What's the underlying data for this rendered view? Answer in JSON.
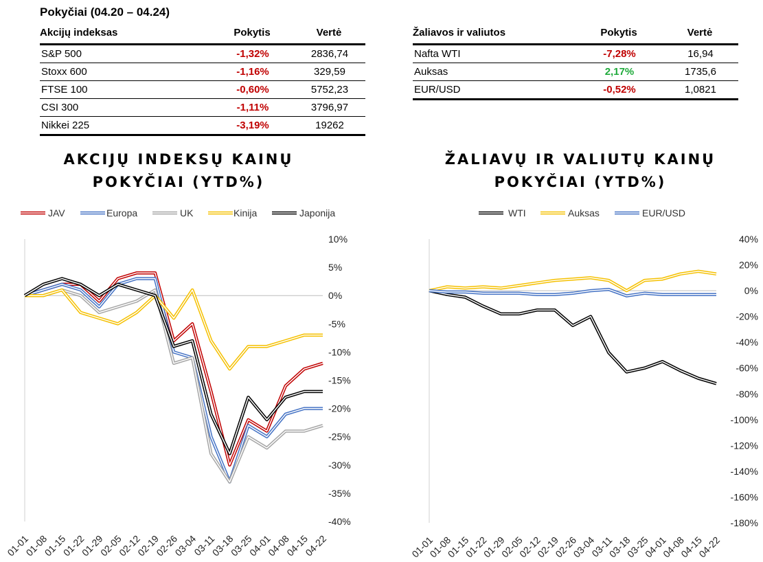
{
  "title": "Pokyčiai (04.20 – 04.24)",
  "table_left": {
    "headers": [
      "Akcijų indeksas",
      "Pokytis",
      "Vertė"
    ],
    "rows": [
      {
        "name": "S&P 500",
        "change": "-1,32%",
        "value": "2836,74",
        "dir": "neg"
      },
      {
        "name": "Stoxx 600",
        "change": "-1,16%",
        "value": "329,59",
        "dir": "neg"
      },
      {
        "name": "FTSE 100",
        "change": "-0,60%",
        "value": "5752,23",
        "dir": "neg"
      },
      {
        "name": "CSI 300",
        "change": "-1,11%",
        "value": "3796,97",
        "dir": "neg"
      },
      {
        "name": "Nikkei 225",
        "change": "-3,19%",
        "value": "19262",
        "dir": "neg"
      }
    ]
  },
  "table_right": {
    "headers": [
      "Žaliavos ir valiutos",
      "Pokytis",
      "Vertė"
    ],
    "rows": [
      {
        "name": "Nafta WTI",
        "change": "-7,28%",
        "value": "16,94",
        "dir": "neg"
      },
      {
        "name": "Auksas",
        "change": "2,17%",
        "value": "1735,6",
        "dir": "pos"
      },
      {
        "name": "EUR/USD",
        "change": "-0,52%",
        "value": "1,0821",
        "dir": "neg"
      }
    ]
  },
  "colors": {
    "neg": "#c00000",
    "pos": "#1faa3b",
    "JAV": "#c00000",
    "Europa": "#4472c4",
    "UK": "#a5a5a5",
    "Kinija": "#f5c000",
    "Japonija": "#000000",
    "WTI": "#000000",
    "Auksas": "#f5c000",
    "EUR/USD": "#4472c4"
  },
  "chart_data": [
    {
      "type": "line",
      "title": "AKCIJŲ INDEKSŲ KAINŲ POKYČIAI (YTD%)",
      "title_lines": [
        "AKCIJŲ INDEKSŲ KAINŲ",
        "POKYČIAI (YTD%)"
      ],
      "x": [
        "01-01",
        "01-08",
        "01-15",
        "01-22",
        "01-29",
        "02-05",
        "02-12",
        "02-19",
        "02-26",
        "03-04",
        "03-11",
        "03-18",
        "03-25",
        "04-01",
        "04-08",
        "04-15",
        "04-22"
      ],
      "y_unit": "%",
      "ylim": [
        -40,
        10
      ],
      "yticks": [
        10,
        5,
        0,
        -5,
        -10,
        -15,
        -20,
        -25,
        -30,
        -35,
        -40
      ],
      "ytick_labels": [
        "10%",
        "5%",
        "0%",
        "-5%",
        "-10%",
        "-15%",
        "-20%",
        "-25%",
        "-30%",
        "-35%",
        "-40%"
      ],
      "legend_position": "top",
      "series": [
        {
          "name": "JAV",
          "values": [
            0,
            1,
            2,
            2,
            -1,
            3,
            4,
            4,
            -8,
            -5,
            -17,
            -30,
            -22,
            -24,
            -16,
            -13,
            -12
          ]
        },
        {
          "name": "Europa",
          "values": [
            0,
            1,
            2,
            1,
            -2,
            2,
            3,
            3,
            -10,
            -11,
            -25,
            -33,
            -23,
            -25,
            -21,
            -20,
            -20
          ]
        },
        {
          "name": "UK",
          "values": [
            0,
            0,
            1,
            0,
            -3,
            -2,
            -1,
            1,
            -12,
            -11,
            -28,
            -33,
            -25,
            -27,
            -24,
            -24,
            -23
          ]
        },
        {
          "name": "Kinija",
          "values": [
            0,
            0,
            1,
            -3,
            -4,
            -5,
            -3,
            0,
            -4,
            1,
            -8,
            -13,
            -9,
            -9,
            -8,
            -7,
            -7
          ]
        },
        {
          "name": "Japonija",
          "values": [
            0,
            2,
            3,
            2,
            0,
            2,
            1,
            0,
            -9,
            -8,
            -21,
            -28,
            -18,
            -22,
            -18,
            -17,
            -17
          ]
        }
      ]
    },
    {
      "type": "line",
      "title": "ŽALIAVŲ IR VALIUTŲ KAINŲ POKYČIAI (YTD%)",
      "title_lines": [
        "ŽALIAVŲ IR VALIUTŲ KAINŲ",
        "POKYČIAI (YTD%)"
      ],
      "x": [
        "01-01",
        "01-08",
        "01-15",
        "01-22",
        "01-29",
        "02-05",
        "02-12",
        "02-19",
        "02-26",
        "03-04",
        "03-11",
        "03-18",
        "03-25",
        "04-01",
        "04-08",
        "04-15",
        "04-22"
      ],
      "y_unit": "%",
      "ylim": [
        -180,
        40
      ],
      "yticks": [
        40,
        20,
        0,
        -20,
        -40,
        -60,
        -80,
        -100,
        -120,
        -140,
        -160,
        -180
      ],
      "ytick_labels": [
        "40%",
        "20%",
        "0%",
        "-20%",
        "-40%",
        "-60%",
        "-80%",
        "-100%",
        "-120%",
        "-140%",
        "-160%",
        "-180%"
      ],
      "legend_position": "top",
      "series": [
        {
          "name": "WTI",
          "values": [
            0,
            -3,
            -5,
            -12,
            -18,
            -18,
            -15,
            -15,
            -27,
            -20,
            -48,
            -63,
            -60,
            -55,
            -62,
            -68,
            -72
          ]
        },
        {
          "name": "Auksas",
          "values": [
            0,
            3,
            2,
            3,
            2,
            4,
            6,
            8,
            9,
            10,
            8,
            0,
            8,
            9,
            13,
            15,
            13
          ]
        },
        {
          "name": "EUR/USD",
          "values": [
            0,
            -1,
            -1,
            -2,
            -2,
            -2,
            -3,
            -3,
            -2,
            0,
            1,
            -4,
            -2,
            -3,
            -3,
            -3,
            -3
          ]
        }
      ]
    }
  ]
}
